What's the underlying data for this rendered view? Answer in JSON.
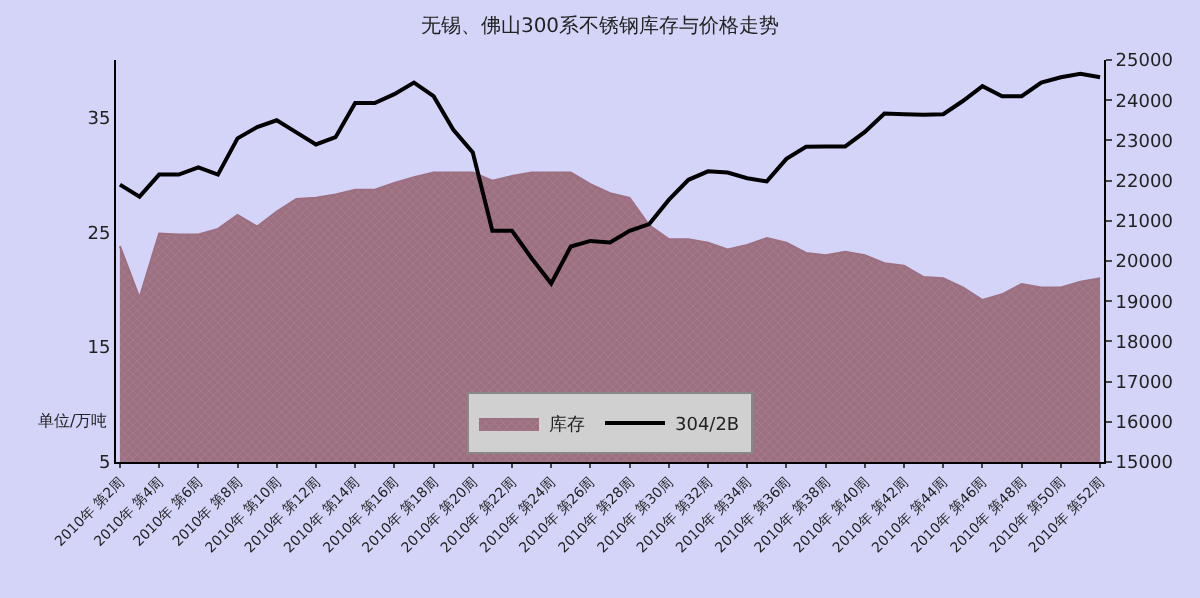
{
  "chart_data": {
    "type": "area",
    "title": "无锡、佛山300系不锈钢库存与价格走势",
    "categories": [
      "2010年 第2周",
      null,
      "2010年 第4周",
      null,
      "2010年 第6周",
      null,
      "2010年 第8周",
      null,
      "2010年 第10周",
      null,
      "2010年 第12周",
      null,
      "2010年 第14周",
      null,
      "2010年 第16周",
      null,
      "2010年 第18周",
      null,
      "2010年 第20周",
      null,
      "2010年 第22周",
      null,
      "2010年 第24周",
      null,
      "2010年 第26周",
      null,
      "2010年 第28周",
      null,
      "2010年 第30周",
      null,
      "2010年 第32周",
      null,
      "2010年 第34周",
      null,
      "2010年 第36周",
      null,
      "2010年 第38周",
      null,
      "2010年 第40周",
      null,
      "2010年 第42周",
      null,
      "2010年 第44周",
      null,
      "2010年 第46周",
      null,
      "2010年 第48周",
      null,
      "2010年 第50周",
      null,
      "2010年 第52周"
    ],
    "series": [
      {
        "name": "库存",
        "color": "#9c7080",
        "values": [
          23.8,
          19.3,
          24.9,
          24.8,
          24.8,
          25.3,
          26.5,
          25.5,
          26.8,
          27.9,
          28.0,
          28.3,
          28.7,
          28.7,
          29.3,
          29.8,
          30.2,
          30.2,
          30.2,
          29.5,
          29.9,
          30.2,
          30.2,
          30.2,
          29.2,
          28.4,
          28.0,
          25.6,
          24.4,
          24.4,
          24.1,
          23.5,
          23.9,
          24.5,
          24.1,
          23.2,
          23.0,
          23.3,
          23.0,
          22.3,
          22.1,
          21.1,
          21.0,
          20.2,
          19.1,
          19.6,
          20.5,
          20.2,
          20.2,
          20.7,
          21.0
        ]
      },
      {
        "name": "304/2B",
        "type": "line",
        "axis": "y2",
        "color": "#000000",
        "values": [
          21900,
          21600,
          22150,
          22150,
          22330,
          22150,
          23050,
          23330,
          23500,
          23200,
          22900,
          23080,
          23930,
          23930,
          24150,
          24440,
          24100,
          23270,
          22700,
          20750,
          20750,
          20070,
          19440,
          20360,
          20500,
          20460,
          20750,
          20920,
          21520,
          22020,
          22230,
          22200,
          22060,
          21980,
          22540,
          22840,
          22850,
          22850,
          23210,
          23670,
          23650,
          23640,
          23650,
          23980,
          24350,
          24100,
          24100,
          24440,
          24570,
          24660,
          24570
        ]
      }
    ],
    "ylim": [
      5,
      40
    ],
    "yticks": [
      5,
      15,
      25,
      35
    ],
    "y2lim": [
      15000,
      25000
    ],
    "y2ticks": [
      15000,
      16000,
      17000,
      18000,
      19000,
      20000,
      21000,
      22000,
      23000,
      24000,
      25000
    ],
    "annotations": [
      "单位/万吨"
    ],
    "legend": "bottom",
    "grid": false,
    "marker": "none",
    "line_style": "solid"
  }
}
